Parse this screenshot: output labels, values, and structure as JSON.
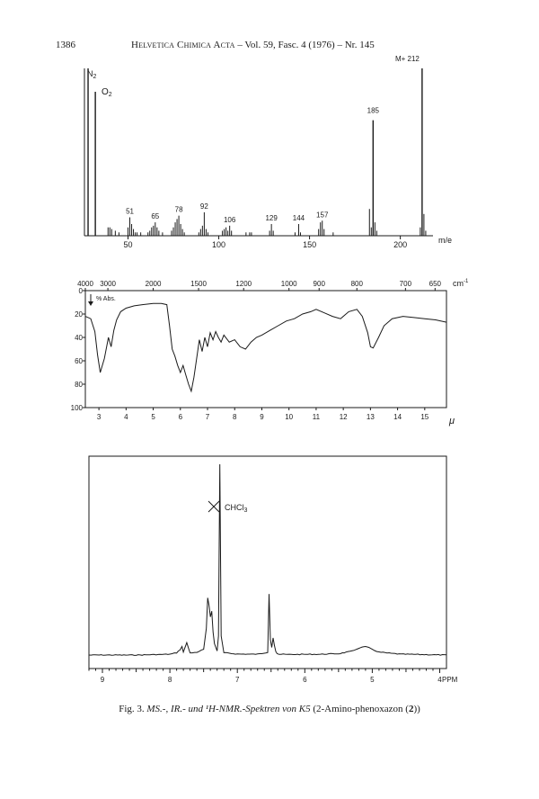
{
  "header": {
    "page_number": "1386",
    "journal": "Helvetica Chimica Acta",
    "volume_issue": " – Vol. 59, Fasc. 4 (1976) – Nr. 145"
  },
  "chart_data": [
    {
      "type": "bar",
      "title": "",
      "xlabel": "m/e",
      "xlabel_display": "m/e",
      "xlim": [
        26,
        218
      ],
      "x_ticks": [
        50,
        100,
        150,
        200
      ],
      "ylim": [
        0,
        100
      ],
      "peaks": [
        {
          "x": 28,
          "y": 100,
          "label": "N2"
        },
        {
          "x": 32,
          "y": 86,
          "label": "O2"
        },
        {
          "x": 39,
          "y": 5
        },
        {
          "x": 40,
          "y": 5
        },
        {
          "x": 41,
          "y": 4
        },
        {
          "x": 43,
          "y": 3
        },
        {
          "x": 45,
          "y": 2
        },
        {
          "x": 50,
          "y": 5
        },
        {
          "x": 51,
          "y": 11,
          "label": "51"
        },
        {
          "x": 52,
          "y": 7
        },
        {
          "x": 53,
          "y": 4
        },
        {
          "x": 54,
          "y": 2
        },
        {
          "x": 55,
          "y": 2
        },
        {
          "x": 57,
          "y": 2
        },
        {
          "x": 61,
          "y": 2
        },
        {
          "x": 62,
          "y": 3
        },
        {
          "x": 63,
          "y": 5
        },
        {
          "x": 64,
          "y": 6
        },
        {
          "x": 65,
          "y": 8,
          "label": "65"
        },
        {
          "x": 66,
          "y": 5
        },
        {
          "x": 67,
          "y": 3
        },
        {
          "x": 69,
          "y": 2
        },
        {
          "x": 74,
          "y": 3
        },
        {
          "x": 75,
          "y": 5
        },
        {
          "x": 76,
          "y": 8
        },
        {
          "x": 77,
          "y": 10
        },
        {
          "x": 78,
          "y": 12,
          "label": "78"
        },
        {
          "x": 79,
          "y": 7
        },
        {
          "x": 80,
          "y": 4
        },
        {
          "x": 81,
          "y": 2
        },
        {
          "x": 89,
          "y": 2
        },
        {
          "x": 90,
          "y": 4
        },
        {
          "x": 91,
          "y": 6
        },
        {
          "x": 92,
          "y": 14,
          "label": "92"
        },
        {
          "x": 93,
          "y": 4
        },
        {
          "x": 94,
          "y": 2
        },
        {
          "x": 102,
          "y": 3
        },
        {
          "x": 103,
          "y": 4
        },
        {
          "x": 104,
          "y": 5
        },
        {
          "x": 105,
          "y": 3
        },
        {
          "x": 106,
          "y": 6,
          "label": "106"
        },
        {
          "x": 107,
          "y": 3
        },
        {
          "x": 115,
          "y": 2
        },
        {
          "x": 117,
          "y": 2
        },
        {
          "x": 118,
          "y": 2
        },
        {
          "x": 128,
          "y": 3
        },
        {
          "x": 129,
          "y": 7,
          "label": "129"
        },
        {
          "x": 130,
          "y": 3
        },
        {
          "x": 142,
          "y": 2
        },
        {
          "x": 144,
          "y": 7,
          "label": "144"
        },
        {
          "x": 145,
          "y": 2
        },
        {
          "x": 155,
          "y": 4
        },
        {
          "x": 156,
          "y": 8
        },
        {
          "x": 157,
          "y": 9,
          "label": "157"
        },
        {
          "x": 158,
          "y": 4
        },
        {
          "x": 163,
          "y": 2
        },
        {
          "x": 183,
          "y": 16
        },
        {
          "x": 184,
          "y": 5
        },
        {
          "x": 185,
          "y": 69,
          "label": "185"
        },
        {
          "x": 186,
          "y": 8
        },
        {
          "x": 187,
          "y": 3
        },
        {
          "x": 211,
          "y": 5
        },
        {
          "x": 212,
          "y": 100,
          "label": "M+ 212"
        },
        {
          "x": 213,
          "y": 13
        },
        {
          "x": 214,
          "y": 3
        }
      ]
    },
    {
      "type": "line",
      "title": "",
      "ylabel": "% Abs.",
      "xlabel_top_unit": "cm-1",
      "xlabel_bottom": "μ",
      "x_range_um": [
        2.5,
        15.8
      ],
      "ylim": [
        0,
        100
      ],
      "y_reversed": true,
      "y_ticks": [
        0,
        20,
        40,
        60,
        80,
        100
      ],
      "bottom_ticks_um": [
        3,
        4,
        5,
        6,
        7,
        8,
        9,
        10,
        11,
        12,
        13,
        14,
        15
      ],
      "top_ticks": [
        {
          "label": "4000",
          "um": 2.5
        },
        {
          "label": "3000",
          "um": 3.33
        },
        {
          "label": "2000",
          "um": 5.0
        },
        {
          "label": "1500",
          "um": 6.67
        },
        {
          "label": "1200",
          "um": 8.33
        },
        {
          "label": "1000",
          "um": 10.0
        },
        {
          "label": "900",
          "um": 11.11
        },
        {
          "label": "800",
          "um": 12.5
        },
        {
          "label": "700",
          "um": 14.29
        },
        {
          "label": "650",
          "um": 15.38
        }
      ],
      "x": [
        2.5,
        2.7,
        2.85,
        2.95,
        3.05,
        3.2,
        3.35,
        3.45,
        3.55,
        3.65,
        3.8,
        4.0,
        4.3,
        4.6,
        5.0,
        5.3,
        5.5,
        5.6,
        5.7,
        5.8,
        5.9,
        6.0,
        6.1,
        6.2,
        6.3,
        6.4,
        6.5,
        6.6,
        6.7,
        6.8,
        6.9,
        7.0,
        7.1,
        7.2,
        7.3,
        7.4,
        7.5,
        7.6,
        7.8,
        8.0,
        8.2,
        8.4,
        8.6,
        8.8,
        9.0,
        9.3,
        9.6,
        9.9,
        10.2,
        10.5,
        10.8,
        11.0,
        11.3,
        11.6,
        11.9,
        12.2,
        12.5,
        12.7,
        12.9,
        13.0,
        13.1,
        13.3,
        13.5,
        13.8,
        14.2,
        14.6,
        15.0,
        15.4,
        15.8
      ],
      "y": [
        22,
        24,
        35,
        55,
        70,
        58,
        40,
        48,
        34,
        25,
        18,
        15,
        13,
        12,
        11,
        11,
        12,
        30,
        50,
        56,
        64,
        70,
        64,
        72,
        80,
        86,
        74,
        58,
        42,
        52,
        40,
        48,
        36,
        42,
        35,
        40,
        44,
        38,
        44,
        42,
        48,
        50,
        44,
        40,
        38,
        34,
        30,
        26,
        24,
        20,
        18,
        16,
        19,
        22,
        24,
        18,
        16,
        22,
        36,
        48,
        49,
        40,
        30,
        24,
        22,
        23,
        24,
        25,
        27
      ]
    },
    {
      "type": "line",
      "title": "",
      "xlabel": "PPM",
      "xlim": [
        9.2,
        3.9
      ],
      "x_reversed": true,
      "x_ticks": [
        9,
        8,
        7,
        6,
        5,
        4
      ],
      "ylim": [
        0,
        100
      ],
      "annotation": {
        "label": "CHCl3",
        "x": 7.26
      },
      "x": [
        9.2,
        8.5,
        8.0,
        7.9,
        7.85,
        7.82,
        7.8,
        7.78,
        7.75,
        7.72,
        7.7,
        7.6,
        7.5,
        7.46,
        7.44,
        7.42,
        7.4,
        7.38,
        7.36,
        7.34,
        7.3,
        7.28,
        7.26,
        7.24,
        7.2,
        7.0,
        6.7,
        6.55,
        6.53,
        6.51,
        6.49,
        6.47,
        6.45,
        6.43,
        6.41,
        6.38,
        6.2,
        5.8,
        5.5,
        5.3,
        5.2,
        5.15,
        5.1,
        5.05,
        5.0,
        4.9,
        4.6,
        4.2,
        3.9
      ],
      "y": [
        0,
        0,
        0.4,
        1.2,
        2.8,
        4.5,
        1.5,
        3.5,
        6.5,
        3.2,
        1.0,
        1.5,
        3.0,
        14,
        30,
        26,
        20,
        23,
        12,
        6,
        2,
        10,
        100,
        10,
        1.2,
        0.5,
        0.4,
        1.5,
        32,
        8,
        4,
        9,
        5,
        2,
        0.8,
        0.4,
        0.3,
        0.4,
        0.7,
        2.0,
        3.5,
        4.2,
        4.5,
        4.0,
        3.0,
        1.5,
        0.5,
        0.2,
        0
      ]
    }
  ],
  "labels": {
    "ms_n2_base": "N",
    "ms_n2_sub": "2",
    "ms_o2_base": "O",
    "ms_o2_sub": "2",
    "ms_xlabel_a": "m",
    "ms_xlabel_b": "/e",
    "ir_unit_base": "cm",
    "ir_unit_sup": "-1",
    "ir_ylabel": "% Abs.",
    "ir_xlabel": "μ",
    "nmr_chcl3_base": "CHCl",
    "nmr_chcl3_sub": "3",
    "nmr_xlabel": "PPM"
  },
  "caption": {
    "prefix": "Fig. 3. ",
    "italic": "MS.-, IR.- und ¹H-NMR.-Spektren von K5",
    "text": " (2-Amino-phenoxazon (",
    "bold": "2",
    "suffix": "))"
  }
}
